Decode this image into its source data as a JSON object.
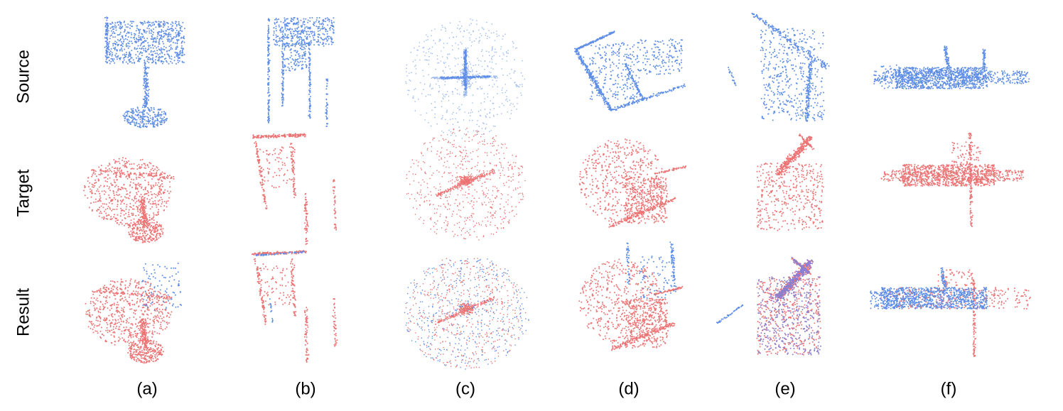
{
  "row_labels": [
    "Source",
    "Target",
    "Result"
  ],
  "column_labels": [
    "(a)",
    "(b)",
    "(c)",
    "(d)",
    "(e)",
    "(f)"
  ]
}
